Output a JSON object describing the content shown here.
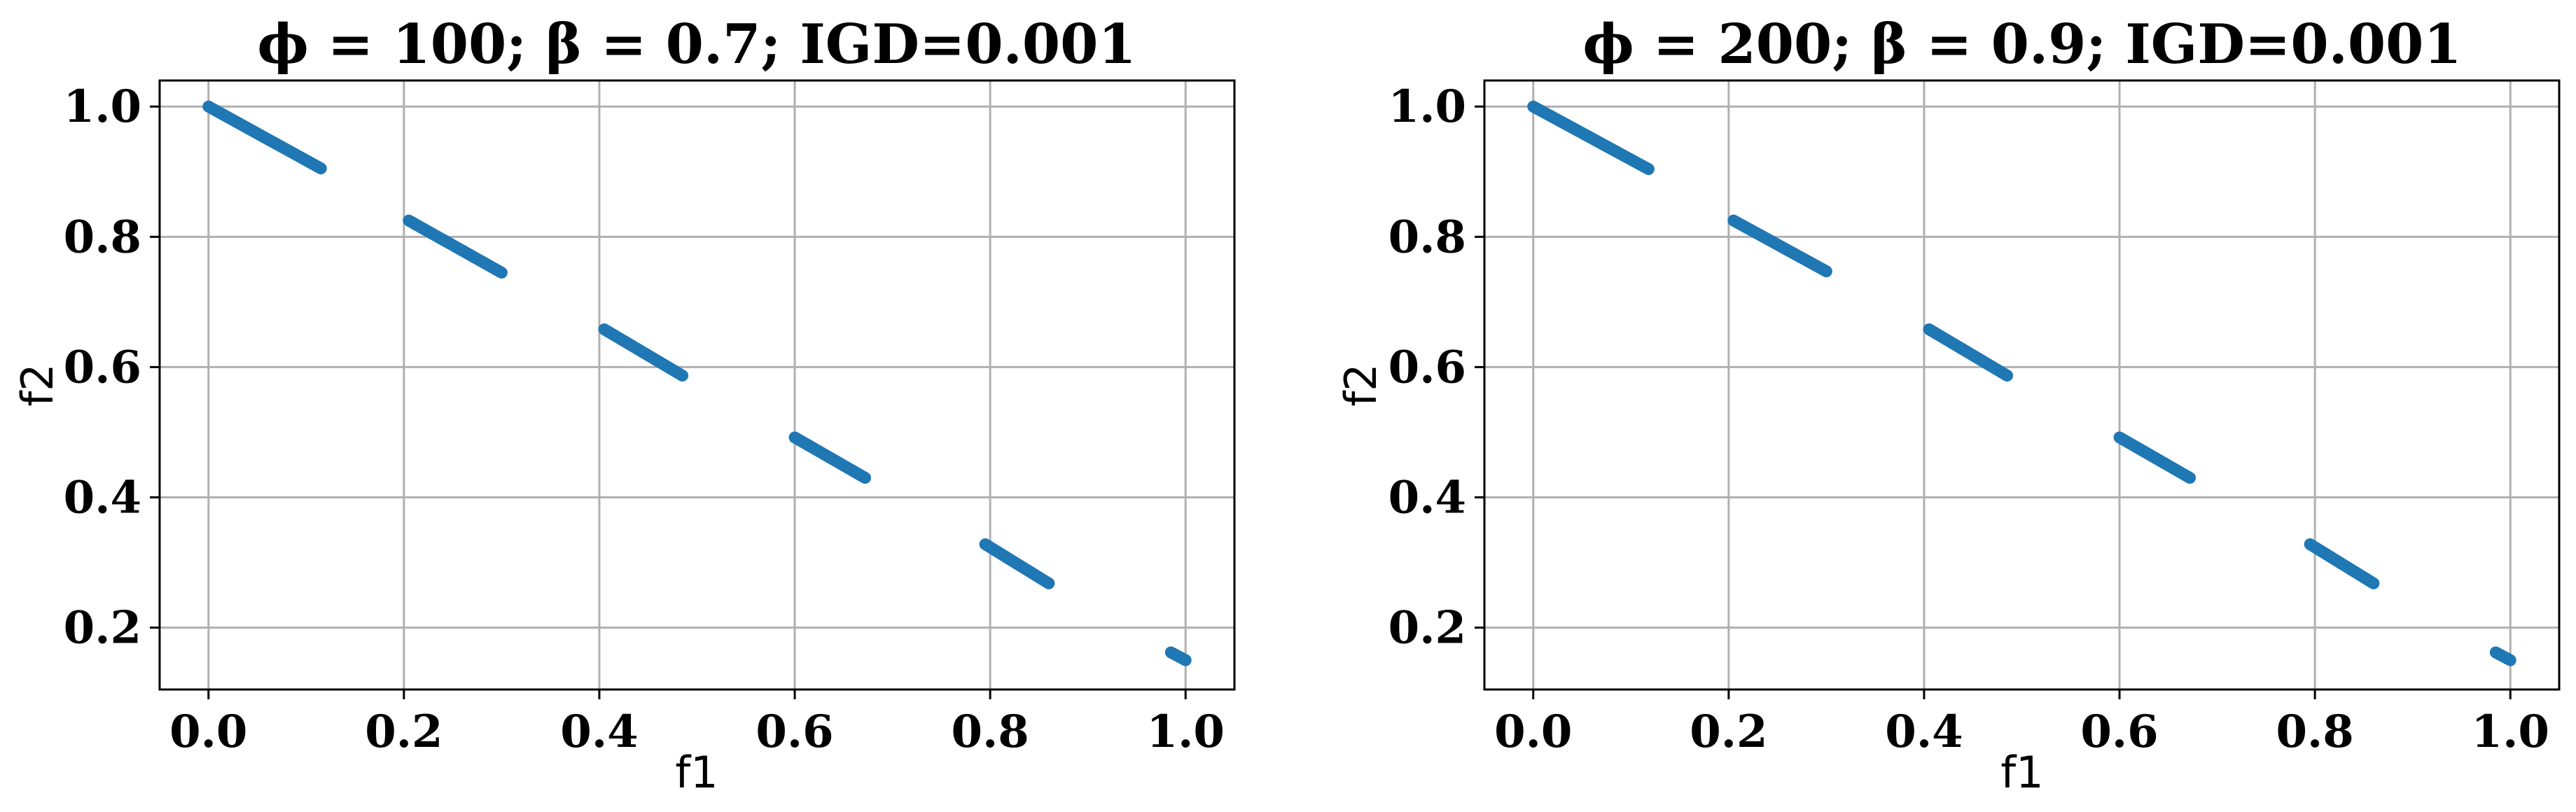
{
  "chart_data": [
    {
      "type": "scatter",
      "title": "ϕ = 100; β = 0.7; IGD=0.001",
      "xlabel": "f1",
      "ylabel": "f2",
      "xlim": [
        -0.05,
        1.05
      ],
      "ylim": [
        0.105,
        1.04
      ],
      "xticks": [
        "0.0",
        "0.2",
        "0.4",
        "0.6",
        "0.8",
        "1.0"
      ],
      "yticks": [
        "0.2",
        "0.4",
        "0.6",
        "0.8",
        "1.0"
      ],
      "grid": true,
      "color": "#1f77b4",
      "series": [
        {
          "segments": [
            {
              "x": [
                0.0,
                0.115
              ],
              "y": [
                1.0,
                0.905
              ]
            },
            {
              "x": [
                0.205,
                0.3
              ],
              "y": [
                0.825,
                0.745
              ]
            },
            {
              "x": [
                0.405,
                0.485
              ],
              "y": [
                0.658,
                0.587
              ]
            },
            {
              "x": [
                0.6,
                0.672
              ],
              "y": [
                0.492,
                0.43
              ]
            },
            {
              "x": [
                0.795,
                0.86
              ],
              "y": [
                0.328,
                0.268
              ]
            },
            {
              "x": [
                0.985,
                1.0
              ],
              "y": [
                0.162,
                0.15
              ]
            }
          ]
        }
      ]
    },
    {
      "type": "scatter",
      "title": "ϕ = 200; β = 0.9; IGD=0.001",
      "xlabel": "f1",
      "ylabel": "f2",
      "xlim": [
        -0.05,
        1.05
      ],
      "ylim": [
        0.105,
        1.04
      ],
      "xticks": [
        "0.0",
        "0.2",
        "0.4",
        "0.6",
        "0.8",
        "1.0"
      ],
      "yticks": [
        "0.2",
        "0.4",
        "0.6",
        "0.8",
        "1.0"
      ],
      "grid": true,
      "color": "#1f77b4",
      "series": [
        {
          "segments": [
            {
              "x": [
                0.0,
                0.118
              ],
              "y": [
                1.0,
                0.904
              ]
            },
            {
              "x": [
                0.205,
                0.3
              ],
              "y": [
                0.825,
                0.747
              ]
            },
            {
              "x": [
                0.405,
                0.485
              ],
              "y": [
                0.658,
                0.587
              ]
            },
            {
              "x": [
                0.6,
                0.672
              ],
              "y": [
                0.492,
                0.43
              ]
            },
            {
              "x": [
                0.795,
                0.86
              ],
              "y": [
                0.328,
                0.268
              ]
            },
            {
              "x": [
                0.985,
                1.0
              ],
              "y": [
                0.162,
                0.15
              ]
            }
          ]
        }
      ]
    }
  ]
}
